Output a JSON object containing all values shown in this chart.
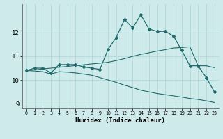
{
  "xlabel": "Humidex (Indice chaleur)",
  "bg_color": "#ceeaea",
  "line_color": "#1f6b6b",
  "grid_color": "#b0d8d8",
  "x_ticks": [
    0,
    1,
    2,
    3,
    4,
    5,
    6,
    7,
    8,
    9,
    10,
    11,
    12,
    13,
    14,
    15,
    16,
    17,
    18,
    19,
    20,
    21,
    22,
    23
  ],
  "xlim": [
    -0.5,
    23.5
  ],
  "ylim": [
    8.8,
    13.2
  ],
  "y_ticks": [
    9,
    10,
    11,
    12
  ],
  "line1_x": [
    0,
    1,
    2,
    3,
    4,
    5,
    6,
    7,
    8,
    9,
    10,
    11,
    12,
    13,
    14,
    15,
    16,
    17,
    18,
    19,
    20,
    21,
    22,
    23
  ],
  "line1_y": [
    10.4,
    10.5,
    10.5,
    10.3,
    10.65,
    10.65,
    10.65,
    10.55,
    10.5,
    10.45,
    11.3,
    11.8,
    12.55,
    12.2,
    12.75,
    12.15,
    12.05,
    12.05,
    11.85,
    11.25,
    10.6,
    10.6,
    10.1,
    9.5
  ],
  "line2_x": [
    0,
    1,
    2,
    3,
    4,
    5,
    6,
    7,
    8,
    9,
    10,
    11,
    12,
    13,
    14,
    15,
    16,
    17,
    18,
    19,
    20,
    21,
    22,
    23
  ],
  "line2_y": [
    10.4,
    10.43,
    10.47,
    10.5,
    10.54,
    10.57,
    10.61,
    10.64,
    10.68,
    10.71,
    10.75,
    10.82,
    10.9,
    11.0,
    11.08,
    11.15,
    11.22,
    11.28,
    11.35,
    11.37,
    11.4,
    10.6,
    10.6,
    10.52
  ],
  "line3_x": [
    0,
    1,
    2,
    3,
    4,
    5,
    6,
    7,
    8,
    9,
    10,
    11,
    12,
    13,
    14,
    15,
    16,
    17,
    18,
    19,
    20,
    21,
    22,
    23
  ],
  "line3_y": [
    10.4,
    10.38,
    10.35,
    10.25,
    10.35,
    10.33,
    10.3,
    10.25,
    10.2,
    10.1,
    10.0,
    9.9,
    9.78,
    9.68,
    9.57,
    9.5,
    9.43,
    9.38,
    9.33,
    9.28,
    9.22,
    9.18,
    9.12,
    9.05
  ]
}
